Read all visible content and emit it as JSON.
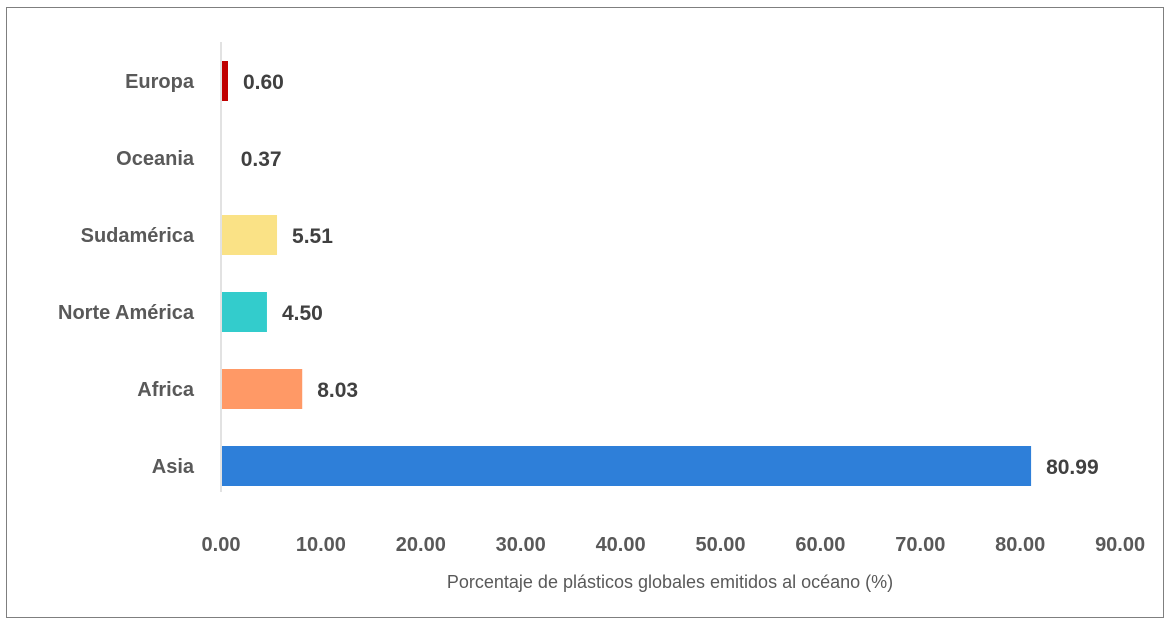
{
  "chart_data": {
    "type": "bar",
    "orientation": "horizontal",
    "title": "",
    "xlabel": "Porcentaje de plásticos globales emitidos al océano (%)",
    "ylabel": "",
    "categories": [
      "Asia",
      "Africa",
      "Norte América",
      "Sudamérica",
      "Oceania",
      "Europa"
    ],
    "values": [
      80.99,
      8.03,
      4.5,
      5.51,
      0.37,
      0.6
    ],
    "value_labels": [
      "80.99",
      "8.03",
      "4.50",
      "5.51",
      "0.37",
      "0.60"
    ],
    "colors": [
      "#2e7fd9",
      "#ff9966",
      "#33cccc",
      "#fae286",
      "#ffffff",
      "#c00000"
    ],
    "xlim": [
      0,
      90
    ],
    "xticks": [
      0,
      10,
      20,
      30,
      40,
      50,
      60,
      70,
      80,
      90
    ],
    "xtick_labels": [
      "0.00",
      "10.00",
      "20.00",
      "30.00",
      "40.00",
      "50.00",
      "60.00",
      "70.00",
      "80.00",
      "90.00"
    ],
    "grid": false,
    "legend": "none"
  }
}
